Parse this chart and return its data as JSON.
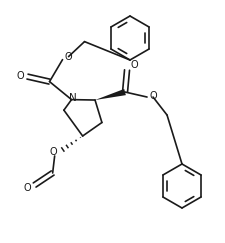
{
  "bg": "#ffffff",
  "lc": "#1a1a1a",
  "lw": 1.2,
  "figsize": [
    2.25,
    2.43
  ],
  "dpi": 100,
  "xlim": [
    0,
    225
  ],
  "ylim": [
    0,
    243
  ]
}
